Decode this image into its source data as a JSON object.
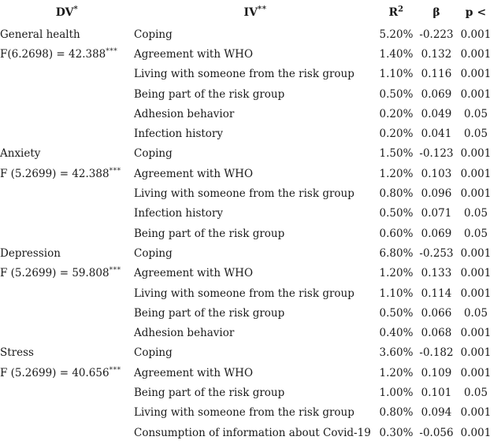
{
  "columns": {
    "dv": {
      "label": "DV",
      "sup": "*"
    },
    "iv": {
      "label": "IV",
      "sup": "**"
    },
    "r2": {
      "label": "R",
      "sup": "2"
    },
    "beta": {
      "label": "β"
    },
    "p": {
      "label": "p <"
    }
  },
  "groups": [
    {
      "dv": "General health",
      "f_stat": "F(6.2698) = 42.388",
      "f_sup": "***",
      "rows": [
        {
          "iv": "Coping",
          "r2": "5.20%",
          "beta": "-0.223",
          "p": "0.001"
        },
        {
          "iv": "Agreement with WHO",
          "r2": "1.40%",
          "beta": "0.132",
          "p": "0.001"
        },
        {
          "iv": "Living with someone from the risk group",
          "r2": "1.10%",
          "beta": "0.116",
          "p": "0.001"
        },
        {
          "iv": "Being part of the risk group",
          "r2": "0.50%",
          "beta": "0.069",
          "p": "0.001"
        },
        {
          "iv": "Adhesion behavior",
          "r2": "0.20%",
          "beta": "0.049",
          "p": "0.05"
        },
        {
          "iv": "Infection history",
          "r2": "0.20%",
          "beta": "0.041",
          "p": "0.05"
        }
      ]
    },
    {
      "dv": "Anxiety",
      "f_stat": "F (5.2699) = 42.388",
      "f_sup": "***",
      "rows": [
        {
          "iv": "Coping",
          "r2": "1.50%",
          "beta": "-0.123",
          "p": "0.001"
        },
        {
          "iv": "Agreement with WHO",
          "r2": "1.20%",
          "beta": "0.103",
          "p": "0.001"
        },
        {
          "iv": "Living with someone from the risk group",
          "r2": "0.80%",
          "beta": "0.096",
          "p": "0.001"
        },
        {
          "iv": "Infection history",
          "r2": "0.50%",
          "beta": "0.071",
          "p": "0.05"
        },
        {
          "iv": "Being part of the risk group",
          "r2": "0.60%",
          "beta": "0.069",
          "p": "0.05"
        }
      ]
    },
    {
      "dv": "Depression",
      "f_stat": "F (5.2699) = 59.808",
      "f_sup": "***",
      "rows": [
        {
          "iv": "Coping",
          "r2": "6.80%",
          "beta": "-0.253",
          "p": "0.001"
        },
        {
          "iv": "Agreement with WHO",
          "r2": "1.20%",
          "beta": "0.133",
          "p": "0.001"
        },
        {
          "iv": "Living with someone from the risk group",
          "r2": "1.10%",
          "beta": "0.114",
          "p": "0.001"
        },
        {
          "iv": "Being part of the risk group",
          "r2": "0.50%",
          "beta": "0.066",
          "p": "0.05"
        },
        {
          "iv": "Adhesion behavior",
          "r2": "0.40%",
          "beta": "0.068",
          "p": "0.001"
        }
      ]
    },
    {
      "dv": "Stress",
      "f_stat": "F (5.2699) = 40.656",
      "f_sup": "***",
      "rows": [
        {
          "iv": "Coping",
          "r2": "3.60%",
          "beta": "-0.182",
          "p": "0.001"
        },
        {
          "iv": "Agreement with WHO",
          "r2": "1.20%",
          "beta": "0.109",
          "p": "0.001"
        },
        {
          "iv": "Being part of the risk group",
          "r2": "1.00%",
          "beta": "0.101",
          "p": "0.05"
        },
        {
          "iv": "Living with someone from the risk group",
          "r2": "0.80%",
          "beta": "0.094",
          "p": "0.001"
        },
        {
          "iv": "Consumption of information about Covid-19",
          "r2": "0.30%",
          "beta": "-0.056",
          "p": "0.001"
        }
      ]
    }
  ],
  "colors": {
    "text": "#1a1a1a",
    "background": "#ffffff"
  }
}
